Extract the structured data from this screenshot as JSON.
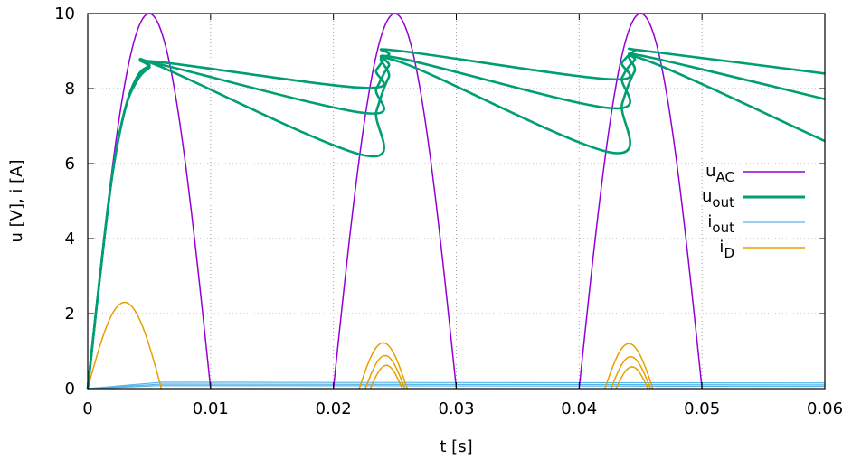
{
  "chart_data": {
    "type": "line",
    "xlabel": "t [s]",
    "ylabel": "u [V], i [A]",
    "xlim": [
      0,
      0.06
    ],
    "ylim": [
      0,
      10
    ],
    "x_ticks": [
      "0",
      "0.01",
      "0.02",
      "0.03",
      "0.04",
      "0.05",
      "0.06"
    ],
    "y_ticks": [
      "0",
      "2",
      "4",
      "6",
      "8",
      "10"
    ],
    "grid": true,
    "legend_position": "right",
    "legend": [
      {
        "base": "u",
        "sub": "AC",
        "color": "#9400d3",
        "width": 1.5
      },
      {
        "base": "u",
        "sub": "out",
        "color": "#009e73",
        "width": 3
      },
      {
        "base": "i",
        "sub": "out",
        "color": "#56b4e9",
        "width": 1.2
      },
      {
        "base": "i",
        "sub": "D",
        "color": "#e69f00",
        "width": 1.5
      }
    ],
    "colors": {
      "u_AC": "#9400d3",
      "u_out": "#009e73",
      "i_out": "#56b4e9",
      "i_D": "#e69f00"
    },
    "series_data": {
      "u_AC": {
        "amplitude": 10,
        "frequency_hz": 50,
        "form": "half-wave rectified sine"
      },
      "u_out_curves": [
        {
          "x": [
            0,
            0.001,
            0.002,
            0.003,
            0.004,
            0.005,
            0.006,
            0.0225,
            0.0235,
            0.0245,
            0.0255,
            0.0425,
            0.0435,
            0.0445,
            0.0455,
            0.06
          ],
          "y": [
            0,
            3.0,
            5.7,
            7.4,
            8.3,
            8.6,
            8.7,
            8.02,
            8.5,
            8.9,
            9.0,
            8.25,
            8.7,
            9.0,
            9.0,
            8.4
          ]
        },
        {
          "x": [
            0,
            0.001,
            0.002,
            0.003,
            0.004,
            0.005,
            0.0058,
            0.0225,
            0.0235,
            0.0245,
            0.0255,
            0.0425,
            0.0435,
            0.0445,
            0.0455,
            0.06
          ],
          "y": [
            0,
            3.0,
            5.7,
            7.4,
            8.3,
            8.6,
            8.65,
            7.35,
            8.0,
            8.6,
            8.8,
            7.48,
            8.3,
            8.75,
            8.85,
            7.72
          ]
        },
        {
          "x": [
            0,
            0.001,
            0.002,
            0.003,
            0.004,
            0.005,
            0.0058,
            0.0225,
            0.0235,
            0.0245,
            0.0255,
            0.0425,
            0.0435,
            0.0445,
            0.0455,
            0.06
          ],
          "y": [
            0,
            3.0,
            5.7,
            7.4,
            8.2,
            8.55,
            8.6,
            6.22,
            7.4,
            8.3,
            8.7,
            6.3,
            7.6,
            8.45,
            8.75,
            6.6
          ]
        }
      ],
      "i_out_curves": [
        {
          "x": [
            0,
            0.006,
            0.06
          ],
          "y": [
            0,
            0.17,
            0.15
          ]
        },
        {
          "x": [
            0,
            0.006,
            0.06
          ],
          "y": [
            0,
            0.12,
            0.1
          ]
        },
        {
          "x": [
            0,
            0.006,
            0.06
          ],
          "y": [
            0,
            0.08,
            0.06
          ]
        }
      ],
      "i_D_pulses": [
        {
          "start": 0,
          "end": 0.006,
          "peak": 2.3
        },
        {
          "start": 0.0221,
          "end": 0.026,
          "peak": 1.22
        },
        {
          "start": 0.0226,
          "end": 0.0258,
          "peak": 0.88
        },
        {
          "start": 0.023,
          "end": 0.0256,
          "peak": 0.62
        },
        {
          "start": 0.0421,
          "end": 0.046,
          "peak": 1.2
        },
        {
          "start": 0.0426,
          "end": 0.0458,
          "peak": 0.85
        },
        {
          "start": 0.043,
          "end": 0.0456,
          "peak": 0.58
        }
      ]
    }
  }
}
